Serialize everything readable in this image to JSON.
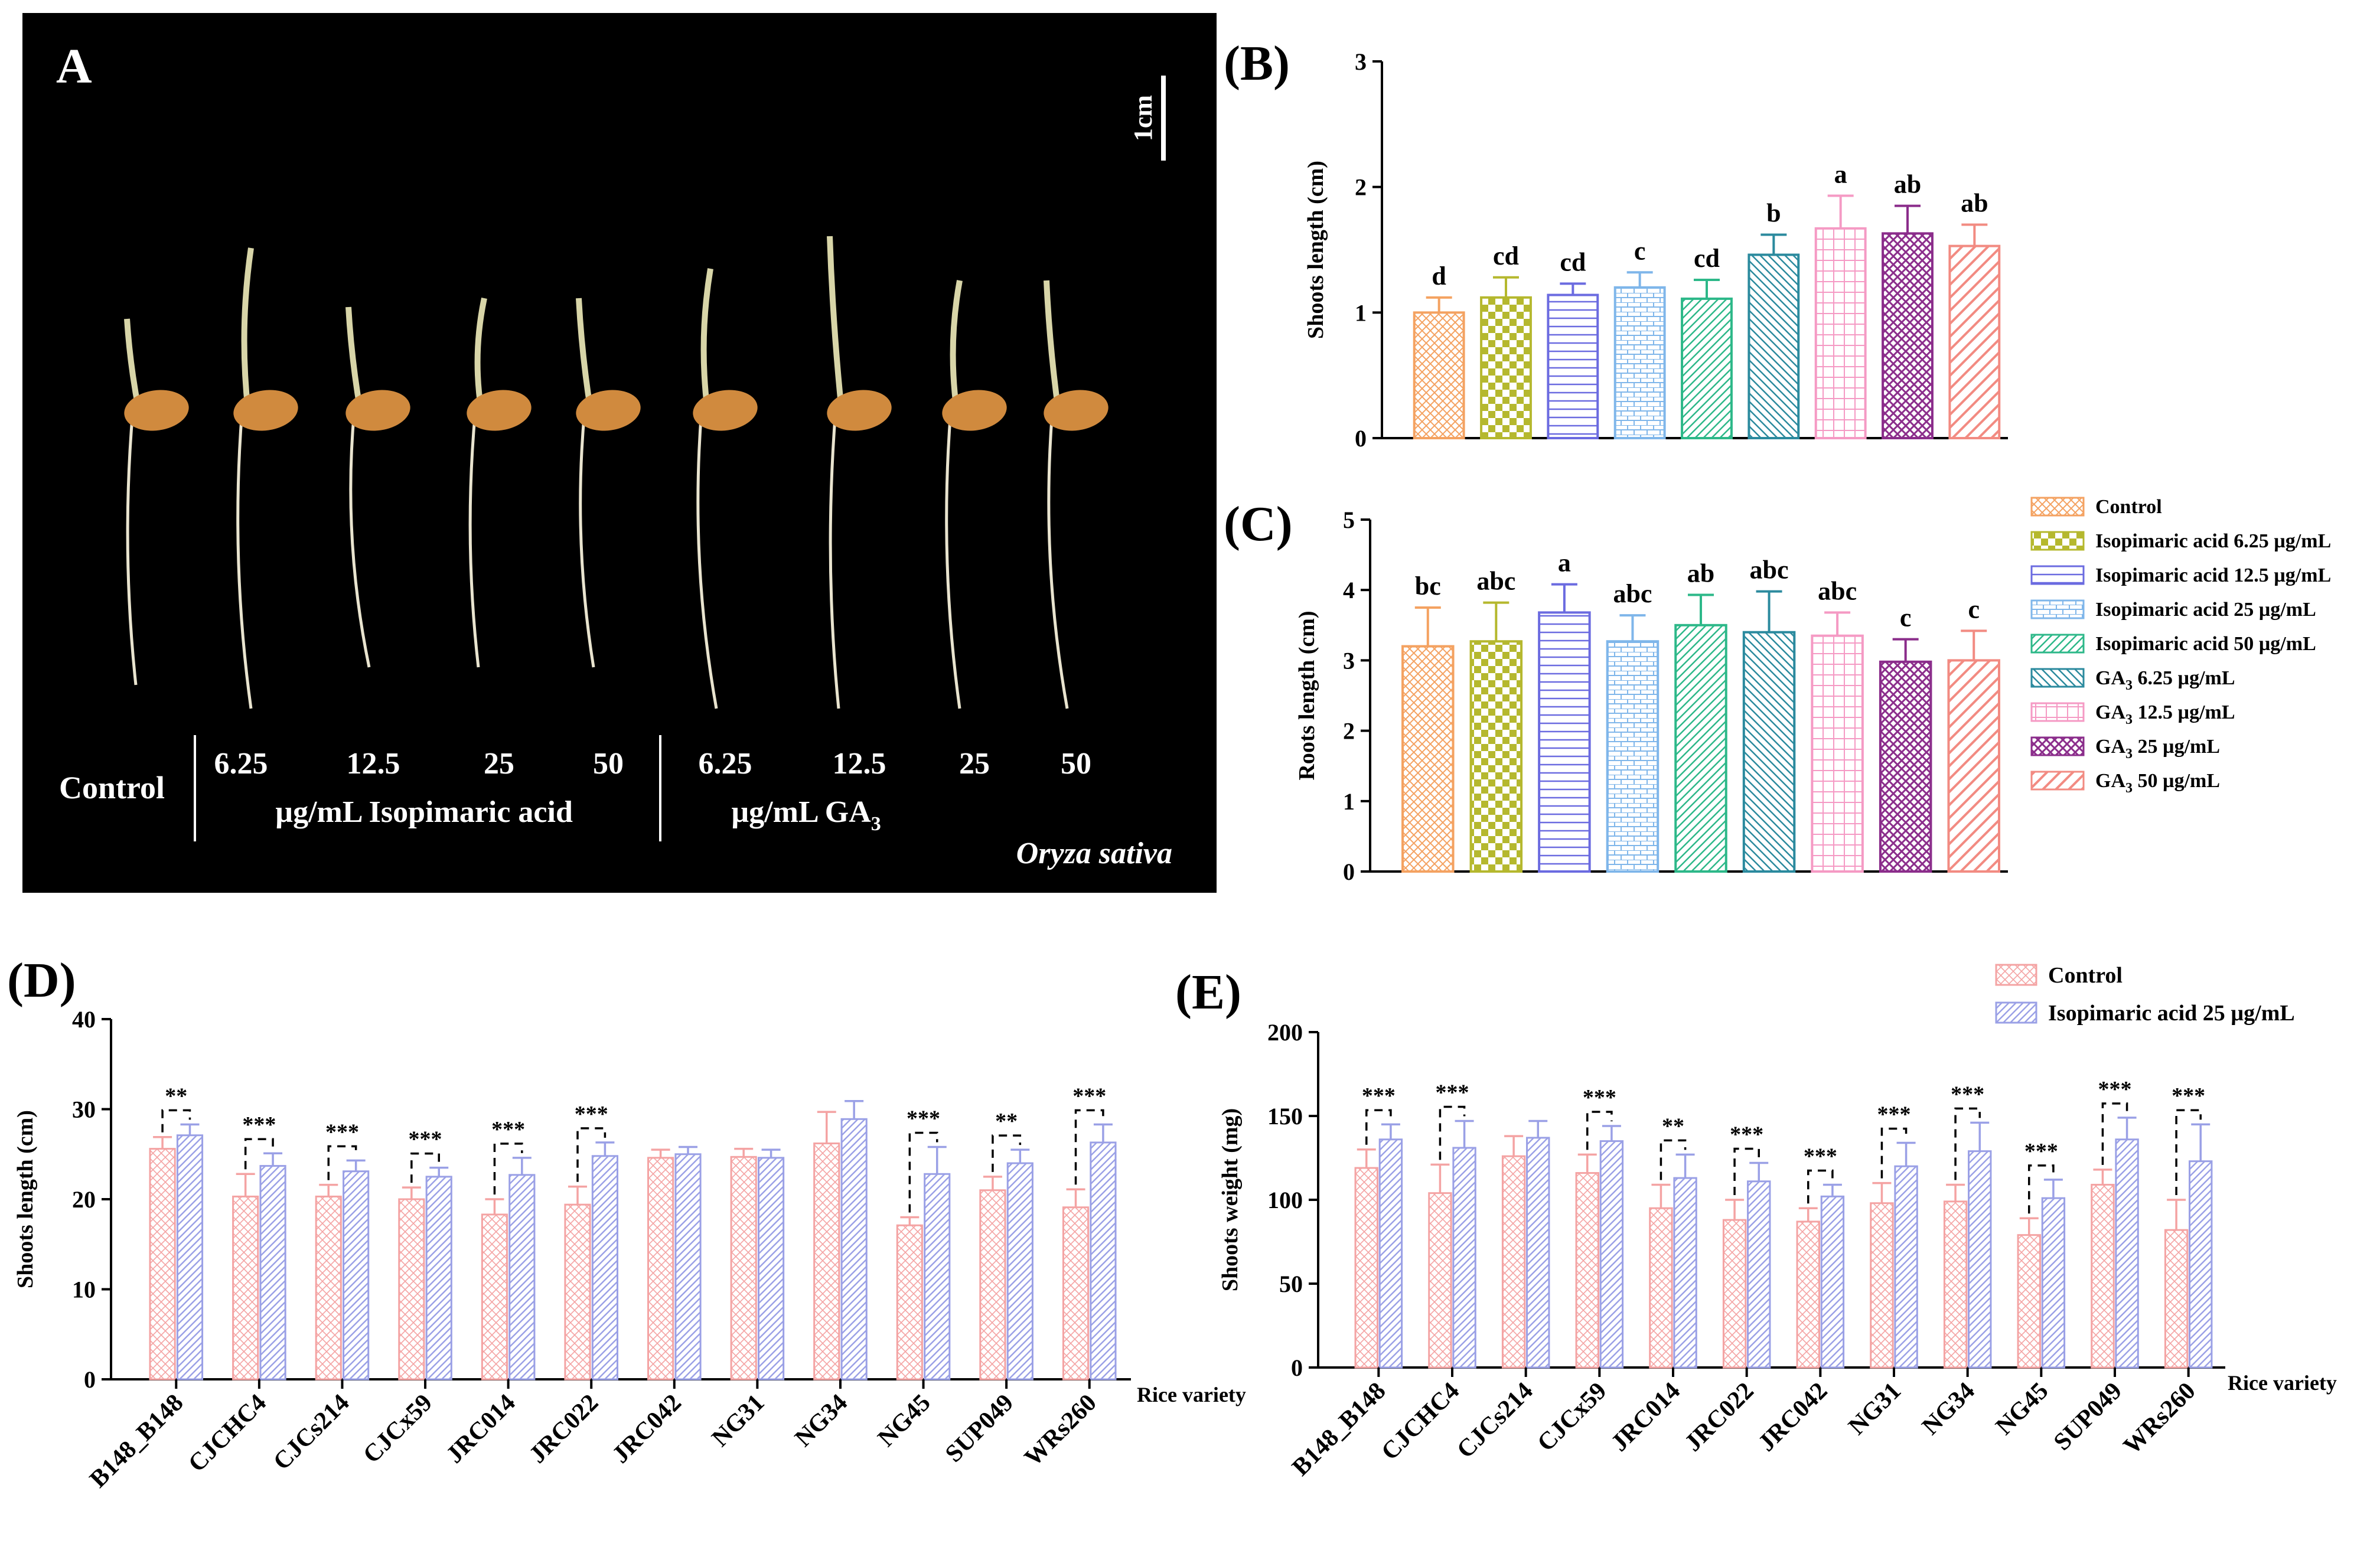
{
  "panelA": {
    "label": "A",
    "scale_bar": "1cm",
    "control_label": "Control",
    "iso_concs": [
      "6.25",
      "12.5",
      "25",
      "50"
    ],
    "iso_caption": "µg/mL  Isopimaric acid",
    "ga_concs": [
      "6.25",
      "12.5",
      "25",
      "50"
    ],
    "ga_caption_prefix": "µg/mL  GA",
    "ga_sub": "3",
    "species": "Oryza sativa"
  },
  "legend_BC": [
    {
      "text": "Control",
      "sub": "",
      "suffix": ""
    },
    {
      "text": "Isopimaric acid 6.25 µg/mL",
      "sub": "",
      "suffix": ""
    },
    {
      "text": "Isopimaric acid 12.5 µg/mL",
      "sub": "",
      "suffix": ""
    },
    {
      "text": "Isopimaric acid 25 µg/mL",
      "sub": "",
      "suffix": ""
    },
    {
      "text": "Isopimaric acid 50 µg/mL",
      "sub": "",
      "suffix": ""
    },
    {
      "text": "GA",
      "sub": "3",
      "suffix": " 6.25 µg/mL"
    },
    {
      "text": "GA",
      "sub": "3",
      "suffix": " 12.5 µg/mL"
    },
    {
      "text": "GA",
      "sub": "3",
      "suffix": " 25 µg/mL"
    },
    {
      "text": "GA",
      "sub": "3",
      "suffix": " 50 µg/mL"
    }
  ],
  "legend_DE": [
    "Control",
    "Isopimaric acid 25 µg/mL"
  ],
  "colors": {
    "treat": [
      "#f4a261",
      "#b5b82e",
      "#6b6be0",
      "#7fb6ea",
      "#2db889",
      "#2b8a9e",
      "#f59ac4",
      "#8b2d8b",
      "#f28b82"
    ],
    "control_pair": "#f4a3a3",
    "iso_pair": "#9aa0e6",
    "photo_bg": "#000000",
    "photo_text": "#ffffff"
  },
  "chart_data": [
    {
      "id": "B",
      "title": "(B)",
      "type": "bar",
      "ylabel": "Shoots length (cm)",
      "ylim": [
        0,
        3
      ],
      "yticks": [
        0,
        1,
        2,
        3
      ],
      "values": [
        1.0,
        1.12,
        1.14,
        1.2,
        1.11,
        1.46,
        1.67,
        1.63,
        1.53
      ],
      "errors": [
        0.12,
        0.16,
        0.09,
        0.12,
        0.15,
        0.16,
        0.26,
        0.22,
        0.17
      ],
      "letters": [
        "d",
        "cd",
        "cd",
        "c",
        "cd",
        "b",
        "a",
        "ab",
        "ab"
      ]
    },
    {
      "id": "C",
      "title": "(C)",
      "type": "bar",
      "ylabel": "Roots length (cm)",
      "ylim": [
        0,
        5
      ],
      "yticks": [
        0,
        1,
        2,
        3,
        4,
        5
      ],
      "values": [
        3.2,
        3.27,
        3.68,
        3.27,
        3.5,
        3.4,
        3.35,
        2.98,
        3.0
      ],
      "errors": [
        0.55,
        0.55,
        0.4,
        0.37,
        0.43,
        0.58,
        0.33,
        0.32,
        0.42
      ],
      "letters": [
        "bc",
        "abc",
        "a",
        "abc",
        "ab",
        "abc",
        "abc",
        "c",
        "c"
      ]
    },
    {
      "id": "D",
      "title": "(D)",
      "type": "bar",
      "ylabel": "Shoots length (cm)",
      "xlabel": "Rice variety",
      "ylim": [
        0,
        40
      ],
      "yticks": [
        0,
        10,
        20,
        30,
        40
      ],
      "categories": [
        "B148_B148",
        "CJCHC4",
        "CJCs214",
        "CJCx59",
        "JRC014",
        "JRC022",
        "JRC042",
        "NG31",
        "NG34",
        "NG45",
        "SUP049",
        "WRs260"
      ],
      "series": [
        {
          "name": "Control",
          "values": [
            25.6,
            20.3,
            20.3,
            20.0,
            18.3,
            19.4,
            24.6,
            24.7,
            26.2,
            17.1,
            21.0,
            19.1
          ],
          "errors": [
            1.3,
            2.5,
            1.3,
            1.3,
            1.7,
            2.0,
            0.9,
            0.9,
            3.5,
            0.9,
            1.5,
            2.0
          ]
        },
        {
          "name": "Isopimaric acid 25 µg/mL",
          "values": [
            27.1,
            23.7,
            23.1,
            22.5,
            22.7,
            24.8,
            25.0,
            24.6,
            28.9,
            22.8,
            24.0,
            26.3
          ],
          "errors": [
            1.2,
            1.4,
            1.2,
            1.0,
            1.9,
            1.5,
            0.8,
            0.9,
            2.0,
            3.0,
            1.5,
            2.0
          ]
        }
      ],
      "significance": [
        "**",
        "***",
        "***",
        "***",
        "***",
        "***",
        "",
        "",
        "",
        "***",
        "**",
        "***"
      ]
    },
    {
      "id": "E",
      "title": "(E)",
      "type": "bar",
      "ylabel": "Shoots weight (mg)",
      "xlabel": "Rice variety",
      "ylim": [
        0,
        200
      ],
      "yticks": [
        0,
        50,
        100,
        150,
        200
      ],
      "categories": [
        "B148_B148",
        "CJCHC4",
        "CJCs214",
        "CJCx59",
        "JRC014",
        "JRC022",
        "JRC042",
        "NG31",
        "NG34",
        "NG45",
        "SUP049",
        "WRs260"
      ],
      "series": [
        {
          "name": "Control",
          "values": [
            119,
            104,
            126,
            116,
            95,
            88,
            87,
            98,
            99,
            79,
            109,
            82
          ],
          "errors": [
            11,
            17,
            12,
            11,
            14,
            12,
            8,
            12,
            10,
            10,
            9,
            18
          ]
        },
        {
          "name": "Isopimaric acid 25 µg/mL",
          "values": [
            136,
            131,
            137,
            135,
            113,
            111,
            102,
            120,
            129,
            101,
            136,
            123
          ],
          "errors": [
            9,
            16,
            10,
            9,
            14,
            11,
            7,
            14,
            17,
            11,
            13,
            22
          ]
        }
      ],
      "significance": [
        "***",
        "***",
        "",
        "***",
        "**",
        "***",
        "***",
        "***",
        "***",
        "***",
        "***",
        "***"
      ]
    }
  ]
}
